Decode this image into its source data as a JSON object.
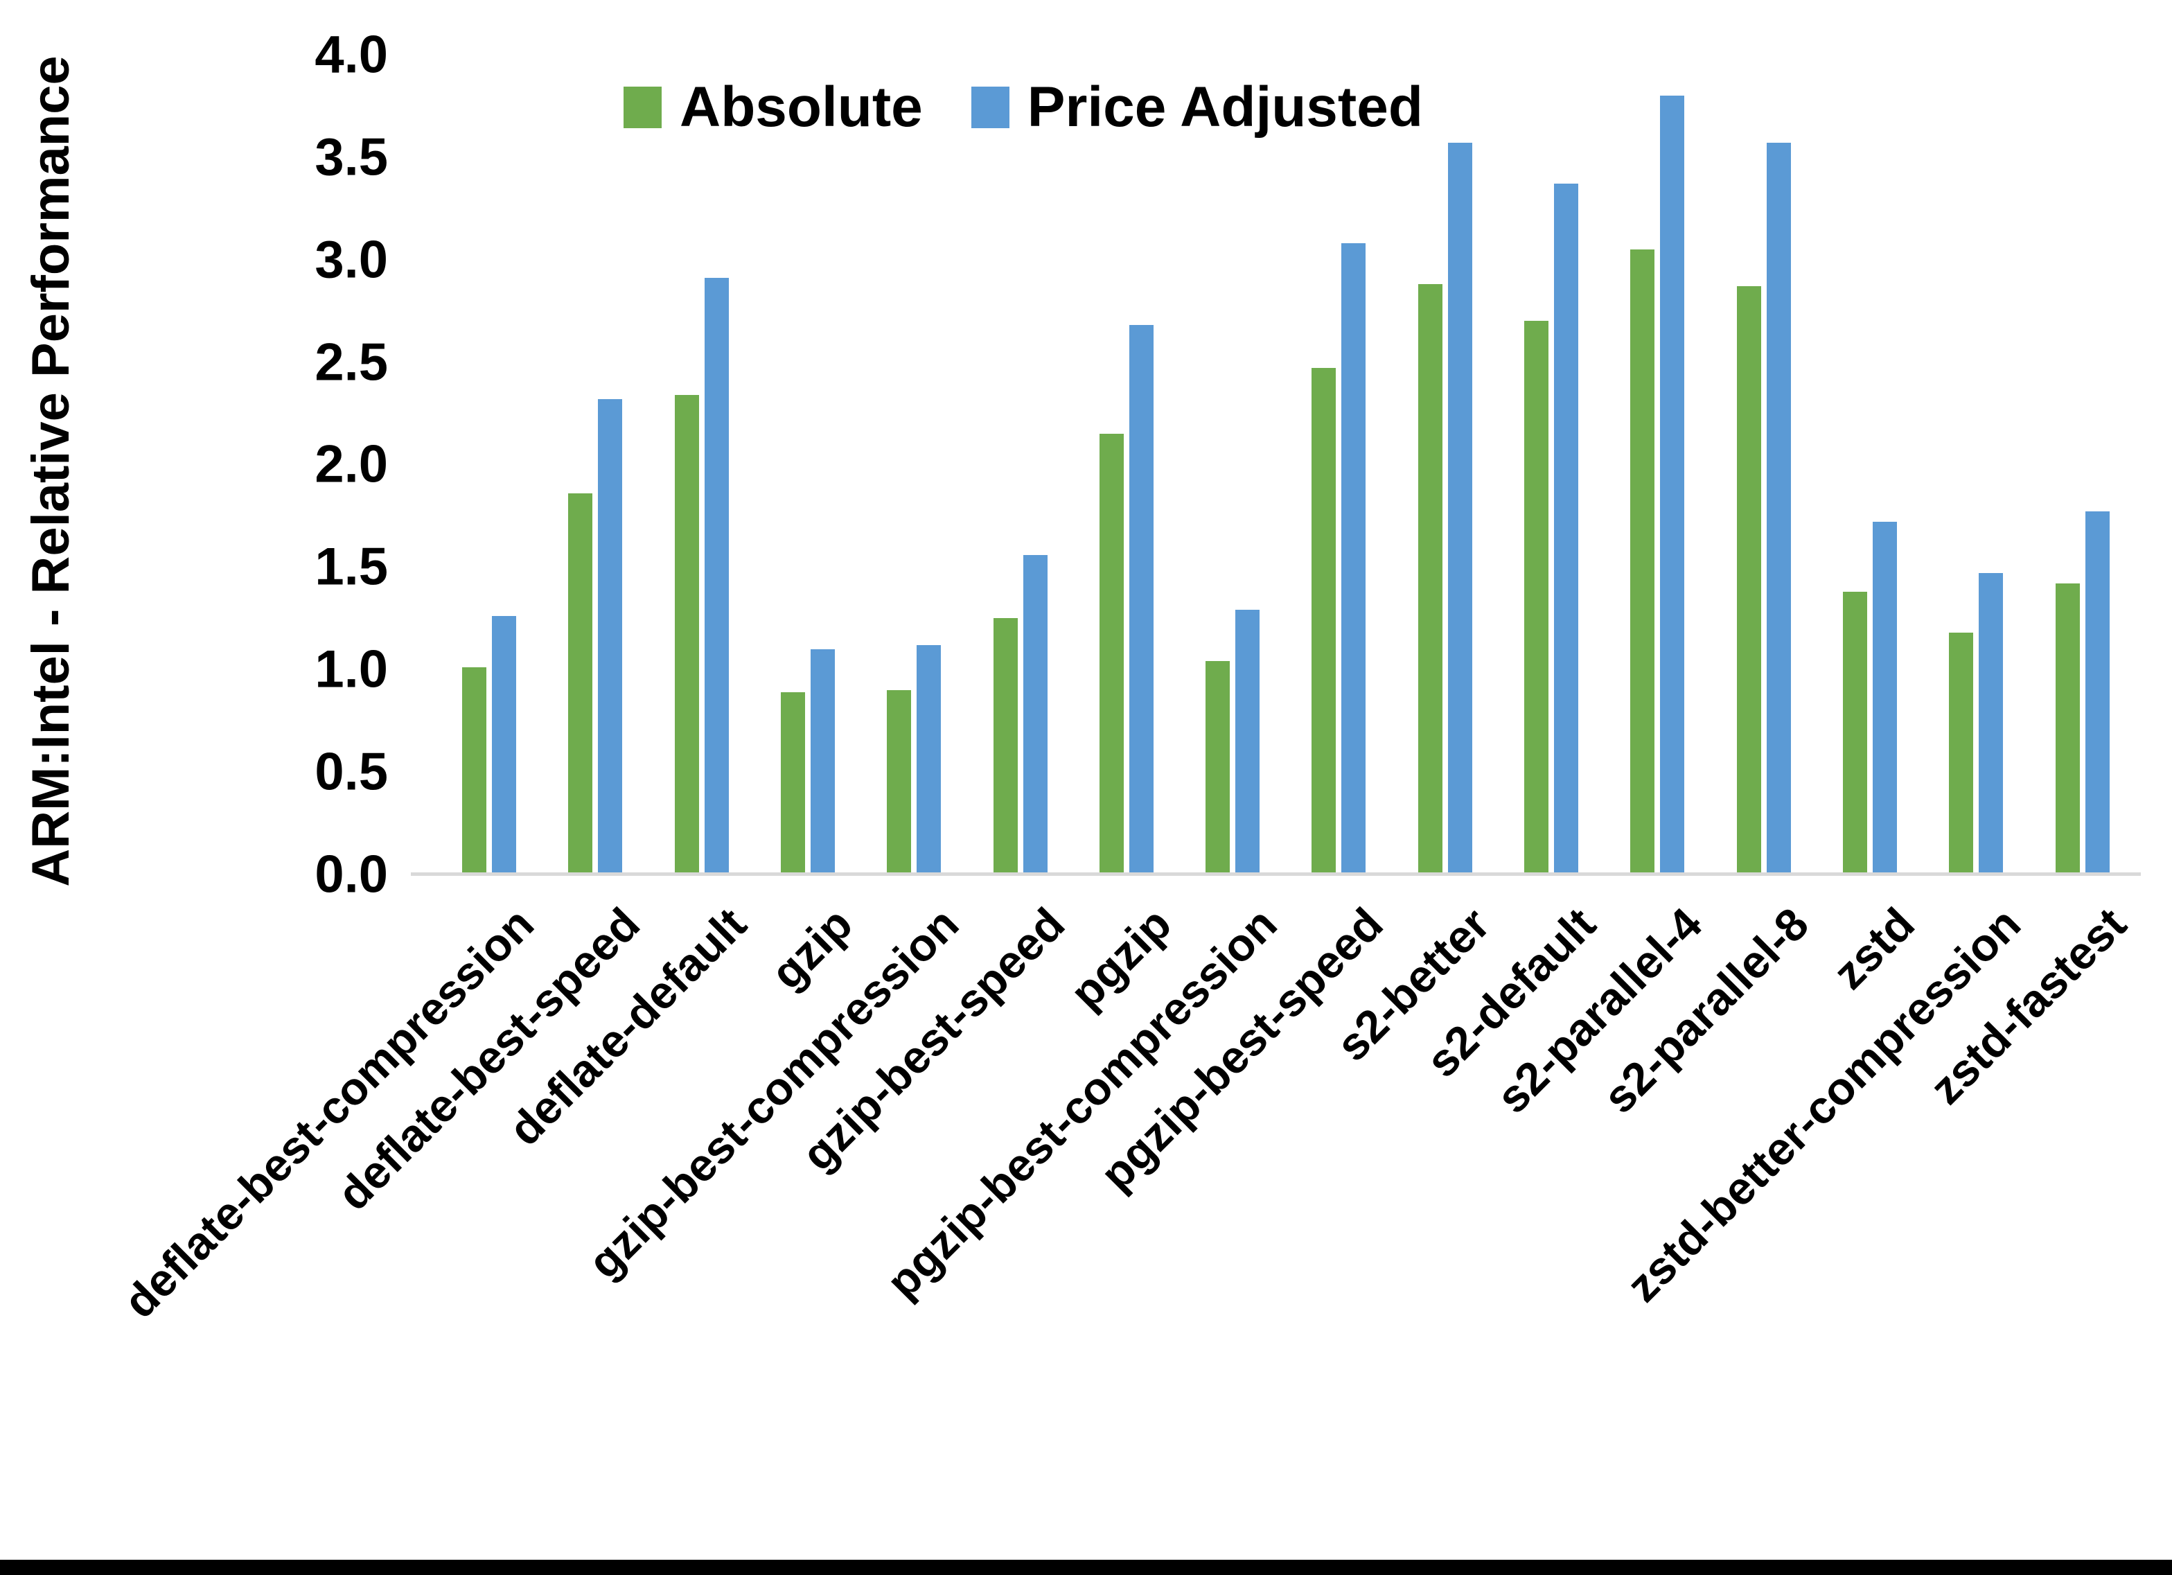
{
  "figure": {
    "background": "#ffffff",
    "bottom_border_color": "#000000"
  },
  "chart_data": {
    "type": "bar",
    "title": "",
    "xlabel": "",
    "ylabel": "ARM:Intel - Relative Performance",
    "ylim": [
      0.0,
      4.0
    ],
    "ytick_step": 0.5,
    "ytick_labels": [
      "0.0",
      "0.5",
      "1.0",
      "1.5",
      "2.0",
      "2.5",
      "3.0",
      "3.5",
      "4.0"
    ],
    "grid": false,
    "legend_position": "top",
    "axis_line_color": "#d9d9d9",
    "categories": [
      "deflate-best-compression",
      "deflate-best-speed",
      "deflate-default",
      "gzip",
      "gzip-best-compression",
      "gzip-best-speed",
      "pgzip",
      "pgzip-best-compression",
      "pgzip-best-speed",
      "s2-better",
      "s2-default",
      "s2-parallel-4",
      "s2-parallel-8",
      "zstd",
      "zstd-better-compression",
      "zstd-fastest"
    ],
    "series": [
      {
        "name": "Absolute",
        "color": "#6fac4d",
        "values": [
          1.01,
          1.86,
          2.34,
          0.89,
          0.9,
          1.25,
          2.15,
          1.04,
          2.47,
          2.88,
          2.7,
          3.05,
          2.87,
          1.38,
          1.18,
          1.42
        ]
      },
      {
        "name": "Price Adjusted",
        "color": "#5b9ad5",
        "values": [
          1.26,
          2.32,
          2.91,
          1.1,
          1.12,
          1.56,
          2.68,
          1.29,
          3.08,
          3.57,
          3.37,
          3.8,
          3.57,
          1.72,
          1.47,
          1.77
        ]
      }
    ]
  }
}
